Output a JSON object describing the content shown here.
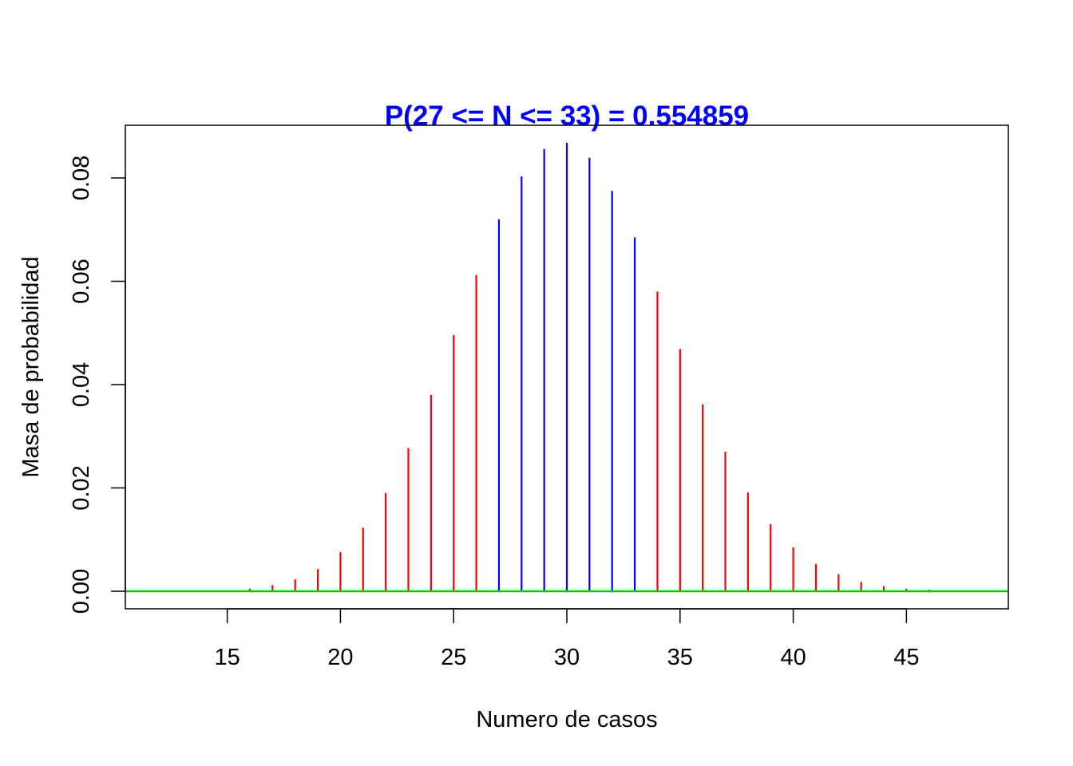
{
  "chart_data": {
    "type": "bar",
    "title": "P(27 <= N <= 33) = 0.554859",
    "xlabel": "Numero de casos",
    "ylabel": "Masa de probabilidad",
    "xlim": [
      10.5,
      49.5
    ],
    "ylim": [
      0,
      0.0868
    ],
    "x_ticks": [
      15,
      20,
      25,
      30,
      35,
      40,
      45
    ],
    "x_tick_labels": [
      "15",
      "20",
      "25",
      "30",
      "35",
      "40",
      "45"
    ],
    "y_ticks": [
      0,
      0.02,
      0.04,
      0.06,
      0.08
    ],
    "y_tick_labels": [
      "0.00",
      "0.02",
      "0.04",
      "0.06",
      "0.08"
    ],
    "grid": false,
    "highlight_range": [
      27,
      33
    ],
    "colors": {
      "highlight": "#0000FF",
      "outside": "#FF0000",
      "baseline": "#00CD00",
      "title": "#0000FF"
    },
    "x": [
      16,
      17,
      18,
      19,
      20,
      21,
      22,
      23,
      24,
      25,
      26,
      27,
      28,
      29,
      30,
      31,
      32,
      33,
      34,
      35,
      36,
      37,
      38,
      39,
      40,
      41,
      42,
      43,
      44,
      45,
      46
    ],
    "values": [
      0.0005,
      0.0012,
      0.0023,
      0.0043,
      0.0076,
      0.0123,
      0.019,
      0.0277,
      0.038,
      0.0496,
      0.0612,
      0.072,
      0.0803,
      0.0856,
      0.0868,
      0.0839,
      0.0775,
      0.0685,
      0.058,
      0.0469,
      0.0362,
      0.027,
      0.0191,
      0.013,
      0.0085,
      0.0053,
      0.0033,
      0.0018,
      0.001,
      0.0005,
      0.0003
    ]
  }
}
